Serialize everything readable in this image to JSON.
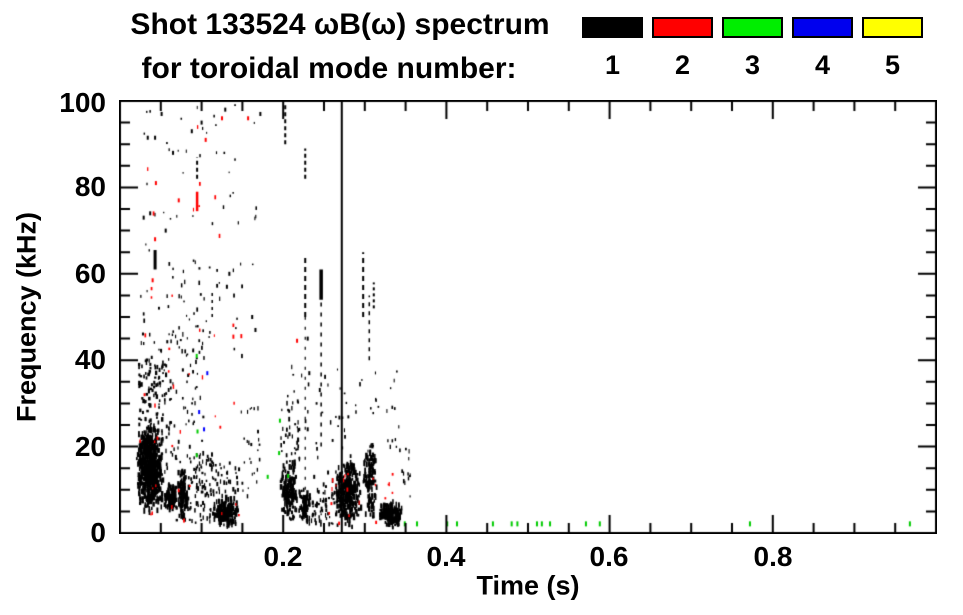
{
  "header": {
    "title_line1": "Shot 133524 ωB(ω) spectrum",
    "title_line2": "for toroidal mode number:"
  },
  "legend": {
    "items": [
      {
        "label": "1",
        "color": "#000000"
      },
      {
        "label": "2",
        "color": "#ff0000"
      },
      {
        "label": "3",
        "color": "#00ee00"
      },
      {
        "label": "4",
        "color": "#0000ee"
      },
      {
        "label": "5",
        "color": "#ffff00"
      }
    ]
  },
  "chart_data": {
    "type": "scatter",
    "title": "Shot 133524 ωB(ω) spectrum for toroidal mode number: 1 2 3 4 5",
    "xlabel": "Time (s)",
    "ylabel": "Frequency (kHz)",
    "xlim": [
      0,
      1.0
    ],
    "ylim": [
      0,
      100
    ],
    "grid": false,
    "legend_position": "top-right",
    "frame_color": "#000000",
    "xticks": {
      "labels": [
        "0.2",
        "0.4",
        "0.6",
        "0.8"
      ],
      "major": [
        0.2,
        0.4,
        0.6,
        0.8
      ],
      "minor_step": 0.05
    },
    "yticks": {
      "labels": [
        "0",
        "20",
        "40",
        "60",
        "80",
        "100"
      ],
      "major": [
        0,
        20,
        40,
        60,
        80,
        100
      ],
      "minor_step": 5
    },
    "mode_colors": {
      "1": "#000000",
      "2": "#ff0000",
      "3": "#00cc00",
      "4": "#0000ff",
      "5": "#ffff00"
    },
    "clusters": [
      {
        "color": "#000000",
        "t": [
          0.02,
          0.054
        ],
        "f": [
          4,
          25
        ],
        "n": 620,
        "dist": "blob",
        "w": 2,
        "h": 4
      },
      {
        "color": "#000000",
        "t": [
          0.022,
          0.058
        ],
        "f": [
          24,
          40
        ],
        "n": 70,
        "dist": "uni",
        "w": 2,
        "h": 3
      },
      {
        "color": "#000000",
        "t": [
          0.028,
          0.105
        ],
        "f": [
          12,
          46
        ],
        "n": 120,
        "dist": "uni",
        "w": 1.6,
        "h": 3
      },
      {
        "color": "#000000",
        "t": [
          0.054,
          0.07
        ],
        "f": [
          4,
          11
        ],
        "n": 90,
        "dist": "blob",
        "w": 2,
        "h": 4
      },
      {
        "color": "#000000",
        "t": [
          0.068,
          0.085
        ],
        "f": [
          2,
          15
        ],
        "n": 110,
        "dist": "blob",
        "w": 2,
        "h": 4
      },
      {
        "color": "#000000",
        "t": [
          0.085,
          0.115
        ],
        "f": [
          2,
          18
        ],
        "n": 80,
        "dist": "uni",
        "w": 1.6,
        "h": 3
      },
      {
        "color": "#000000",
        "t": [
          0.113,
          0.147
        ],
        "f": [
          0.5,
          8
        ],
        "n": 170,
        "dist": "blob",
        "w": 2,
        "h": 4
      },
      {
        "color": "#000000",
        "t": [
          0.11,
          0.15
        ],
        "f": [
          8,
          16
        ],
        "n": 40,
        "dist": "uni",
        "w": 1.6,
        "h": 3
      },
      {
        "color": "#000000",
        "t": [
          0.025,
          0.15
        ],
        "f": [
          40,
          62
        ],
        "n": 55,
        "dist": "uni",
        "w": 1.5,
        "h": 2.8
      },
      {
        "color": "#000000",
        "t": [
          0.148,
          0.172
        ],
        "f": [
          8,
          30
        ],
        "n": 25,
        "dist": "uni",
        "w": 1.5,
        "h": 2.8
      },
      {
        "color": "#000000",
        "t": [
          0.028,
          0.172
        ],
        "f": [
          62,
          100
        ],
        "n": 40,
        "dist": "uni",
        "w": 1.3,
        "h": 2.4
      },
      {
        "color": "#ff0000",
        "t": [
          0.024,
          0.15
        ],
        "f": [
          2,
          60
        ],
        "n": 35,
        "dist": "uni",
        "w": 1.5,
        "h": 2.8
      },
      {
        "color": "#ff0000",
        "t": [
          0.03,
          0.13
        ],
        "f": [
          60,
          97
        ],
        "n": 8,
        "dist": "uni",
        "w": 1.5,
        "h": 2.8
      },
      {
        "color": "#000000",
        "t": [
          0.196,
          0.218
        ],
        "f": [
          2,
          16
        ],
        "n": 140,
        "dist": "blob",
        "w": 2,
        "h": 4
      },
      {
        "color": "#000000",
        "t": [
          0.196,
          0.22
        ],
        "f": [
          16,
          30
        ],
        "n": 35,
        "dist": "uni",
        "w": 1.6,
        "h": 3
      },
      {
        "color": "#000000",
        "t": [
          0.219,
          0.234
        ],
        "f": [
          1,
          10
        ],
        "n": 70,
        "dist": "blob",
        "w": 2,
        "h": 4
      },
      {
        "color": "#000000",
        "t": [
          0.234,
          0.263
        ],
        "f": [
          1,
          12
        ],
        "n": 55,
        "dist": "uni",
        "w": 1.6,
        "h": 3
      },
      {
        "color": "#000000",
        "t": [
          0.262,
          0.296
        ],
        "f": [
          0.5,
          17
        ],
        "n": 280,
        "dist": "blob",
        "w": 2,
        "h": 4
      },
      {
        "color": "#000000",
        "t": [
          0.297,
          0.317
        ],
        "f": [
          2,
          22
        ],
        "n": 110,
        "dist": "blob",
        "w": 2,
        "h": 4
      },
      {
        "color": "#000000",
        "t": [
          0.317,
          0.347
        ],
        "f": [
          0.5,
          7
        ],
        "n": 170,
        "dist": "blob",
        "w": 2,
        "h": 4
      },
      {
        "color": "#000000",
        "t": [
          0.198,
          0.345
        ],
        "f": [
          16,
          38
        ],
        "n": 60,
        "dist": "uni",
        "w": 1.5,
        "h": 2.8
      },
      {
        "color": "#ff0000",
        "t": [
          0.255,
          0.335
        ],
        "f": [
          1,
          14
        ],
        "n": 20,
        "dist": "uni",
        "w": 1.5,
        "h": 2.8
      },
      {
        "color": "#000000",
        "t": [
          0.345,
          0.356
        ],
        "f": [
          8,
          20
        ],
        "n": 12,
        "dist": "uni",
        "w": 1.5,
        "h": 2.8
      }
    ],
    "streaks": [
      {
        "t": 0.2025,
        "f": [
          90,
          99
        ],
        "w": 2,
        "dash": [
          4,
          3
        ]
      },
      {
        "t": 0.227,
        "f": [
          82,
          89
        ],
        "w": 2,
        "dash": [
          4,
          3
        ]
      },
      {
        "t": 0.227,
        "f": [
          50,
          64
        ],
        "w": 2,
        "dash": [
          5,
          4
        ]
      },
      {
        "t": 0.227,
        "f": [
          10,
          50
        ],
        "w": 1.2,
        "dash": [
          3,
          7
        ]
      },
      {
        "t": 0.2465,
        "f": [
          54,
          61
        ],
        "w": 3.5
      },
      {
        "t": 0.2465,
        "f": [
          20,
          54
        ],
        "w": 1.5,
        "dash": [
          4,
          6
        ]
      },
      {
        "t": 0.2718,
        "f": [
          0,
          100
        ],
        "w": 2
      },
      {
        "t": 0.298,
        "f": [
          50,
          65
        ],
        "w": 2,
        "dash": [
          5,
          4
        ]
      },
      {
        "t": 0.3055,
        "f": [
          40,
          55
        ],
        "w": 1.5,
        "dash": [
          4,
          5
        ]
      },
      {
        "t": 0.311,
        "f": [
          52,
          58
        ],
        "w": 2,
        "dash": [
          3,
          3
        ]
      },
      {
        "t": 0.0945,
        "f": [
          82,
          87
        ],
        "w": 2,
        "dash": [
          4,
          3
        ]
      },
      {
        "t": 0.0945,
        "f": [
          74.5,
          79
        ],
        "w": 2.5,
        "color": "#ff0000"
      },
      {
        "t": 0.043,
        "f": [
          61,
          65.5
        ],
        "w": 3
      },
      {
        "t": 0.113,
        "f": [
          50,
          56
        ],
        "w": 1.5,
        "dash": [
          3,
          4
        ]
      }
    ],
    "marks": [
      {
        "color": "#000000",
        "pts": [
          [
            0.051,
            97
          ],
          [
            0.088,
            93
          ],
          [
            0.1,
            95
          ],
          [
            0.129,
            98
          ],
          [
            0.172,
            97
          ],
          [
            0.034,
            91.5
          ],
          [
            0.043,
            91.5
          ],
          [
            0.065,
            88
          ],
          [
            0.037,
            74
          ],
          [
            0.029,
            73
          ],
          [
            0.056,
            70
          ],
          [
            0.134,
            60
          ],
          [
            0.131,
            57
          ],
          [
            0.162,
            50
          ],
          [
            0.166,
            47
          ],
          [
            0.23,
            45
          ],
          [
            0.232,
            37
          ],
          [
            0.23,
            24
          ],
          [
            0.238,
            13
          ],
          [
            0.255,
            14
          ]
        ]
      },
      {
        "color": "#ff0000",
        "pts": [
          [
            0.125,
            96
          ],
          [
            0.157,
            96
          ],
          [
            0.105,
            91
          ],
          [
            0.044,
            81
          ],
          [
            0.072,
            77
          ],
          [
            0.043,
            68
          ],
          [
            0.04,
            58.5
          ],
          [
            0.217,
            44.5
          ]
        ]
      },
      {
        "color": "#00cc00",
        "pts": [
          [
            0.094,
            41
          ],
          [
            0.095,
            23.5
          ],
          [
            0.094,
            18
          ],
          [
            0.196,
            26
          ],
          [
            0.195,
            18.5
          ],
          [
            0.206,
            13.2
          ],
          [
            0.181,
            13
          ]
        ]
      },
      {
        "color": "#0000ff",
        "pts": [
          [
            0.107,
            37
          ],
          [
            0.097,
            28
          ],
          [
            0.103,
            24
          ]
        ]
      }
    ],
    "green_bottom_dots": {
      "f": 2,
      "t": [
        0.349,
        0.364,
        0.401,
        0.413,
        0.457,
        0.48,
        0.487,
        0.511,
        0.517,
        0.527,
        0.571,
        0.588,
        0.772,
        0.968
      ]
    }
  }
}
